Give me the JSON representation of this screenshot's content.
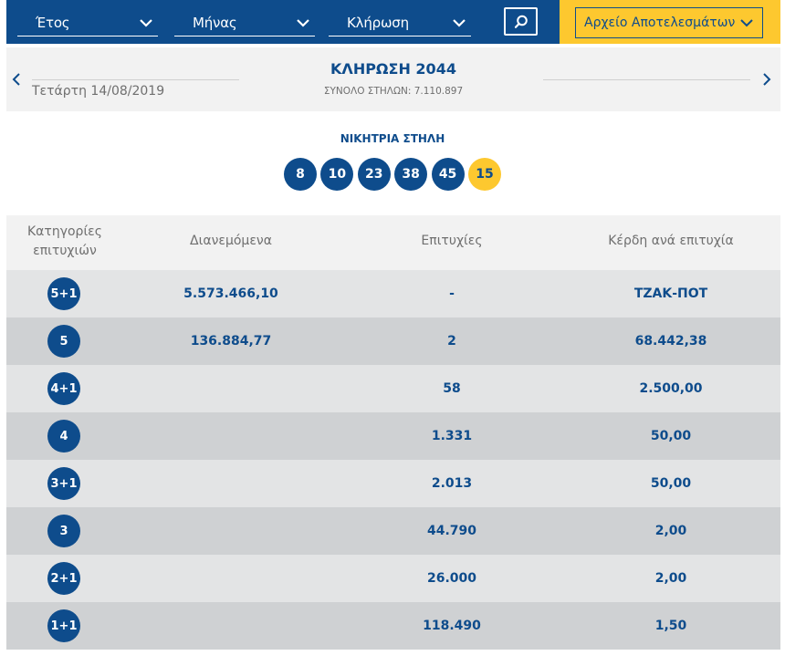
{
  "filters": {
    "year_label": "Έτος",
    "month_label": "Μήνας",
    "draw_label": "Κλήρωση",
    "search_icon": "search-icon",
    "archive_label": "Αρχείο Αποτελεσμάτων"
  },
  "draw": {
    "date": "Τετάρτη 14/08/2019",
    "title": "ΚΛΗΡΩΣΗ 2044",
    "total_columns": "ΣΥΝΟΛΟ ΣΤΗΛΩΝ: 7.110.897"
  },
  "winning": {
    "title": "ΝΙΚΗΤΡΙΑ ΣΤΗΛΗ",
    "numbers": [
      "8",
      "10",
      "23",
      "38",
      "45"
    ],
    "joker": "15"
  },
  "table": {
    "headers": {
      "category": "Κατηγορίες επιτυχιών",
      "distributed": "Διανεμόμενα",
      "successes": "Επιτυχίες",
      "prize": "Κέρδη ανά επιτυχία"
    },
    "rows": [
      {
        "category": "5+1",
        "distributed": "5.573.466,10",
        "successes": "-",
        "prize": "ΤΖΑΚ-ΠΟΤ"
      },
      {
        "category": "5",
        "distributed": "136.884,77",
        "successes": "2",
        "prize": "68.442,38"
      },
      {
        "category": "4+1",
        "distributed": "",
        "successes": "58",
        "prize": "2.500,00"
      },
      {
        "category": "4",
        "distributed": "",
        "successes": "1.331",
        "prize": "50,00"
      },
      {
        "category": "3+1",
        "distributed": "",
        "successes": "2.013",
        "prize": "50,00"
      },
      {
        "category": "3",
        "distributed": "",
        "successes": "44.790",
        "prize": "2,00"
      },
      {
        "category": "2+1",
        "distributed": "",
        "successes": "26.000",
        "prize": "2,00"
      },
      {
        "category": "1+1",
        "distributed": "",
        "successes": "118.490",
        "prize": "1,50"
      }
    ]
  },
  "colors": {
    "primary_blue": "#0e4c8c",
    "accent_yellow": "#fdc82f"
  }
}
